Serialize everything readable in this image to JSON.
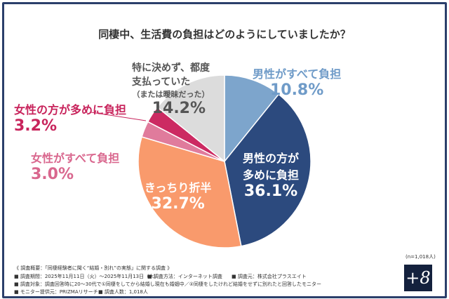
{
  "chart_data": {
    "type": "pie",
    "title": "同棲中、生活費の負担はどのようにしていましたか？",
    "slices": [
      {
        "label": "男性がすべて負担",
        "value": 10.8,
        "display": "10.8%",
        "color": "#7da5cc",
        "text_color": "#6f9bc8"
      },
      {
        "label": "男性の方が多めに負担",
        "value": 36.1,
        "display": "36.1%",
        "color": "#2c4a7e",
        "text_color": "#ffffff"
      },
      {
        "label": "きっちり折半",
        "value": 32.7,
        "display": "32.7%",
        "color": "#f99a6c",
        "text_color": "#ffffff"
      },
      {
        "label": "女性がすべて負担",
        "value": 3.0,
        "display": "3.0%",
        "color": "#e07b9c",
        "text_color": "#d9678e"
      },
      {
        "label": "女性の方が多めに負担",
        "value": 3.2,
        "display": "3.2%",
        "color": "#cc2a62",
        "text_color": "#c8245c"
      },
      {
        "label": "特に決めず、都度支払っていた（または曖昧だった）",
        "value": 14.2,
        "display": "14.2%",
        "color": "#dcdcdc",
        "text_color": "#555555"
      }
    ],
    "sample": "(n=1,018人)"
  },
  "label_lines": {
    "slice1": [
      "男性の方が",
      "多めに負担"
    ],
    "slice5": [
      "特に決めず、都度",
      "支払っていた",
      "（または曖昧だった）"
    ]
  },
  "footer": {
    "line1": "《 調査概要：「同棲経験者に聞く“結婚・別れ”の実態」に関する調査 》",
    "line2a": "■ 調査期間：2025年11月11日（火）～2025年11月13日（木）",
    "line2b": "■ 調査方法：インターネット調査",
    "line2c": "■ 調査元：株式会社プラスエイト",
    "line3": "■ 調査対象：調査回答時に20～30代で①同棲をしてから結婚し現在も婚姻中／②同棲をしたけれど結婚をせずに別れたと回答したモニター",
    "line4a": "■ モニター提供元：PRIZMAリサーチ",
    "line4b": "■ 調査人数：1,018人"
  },
  "logo": "+8"
}
